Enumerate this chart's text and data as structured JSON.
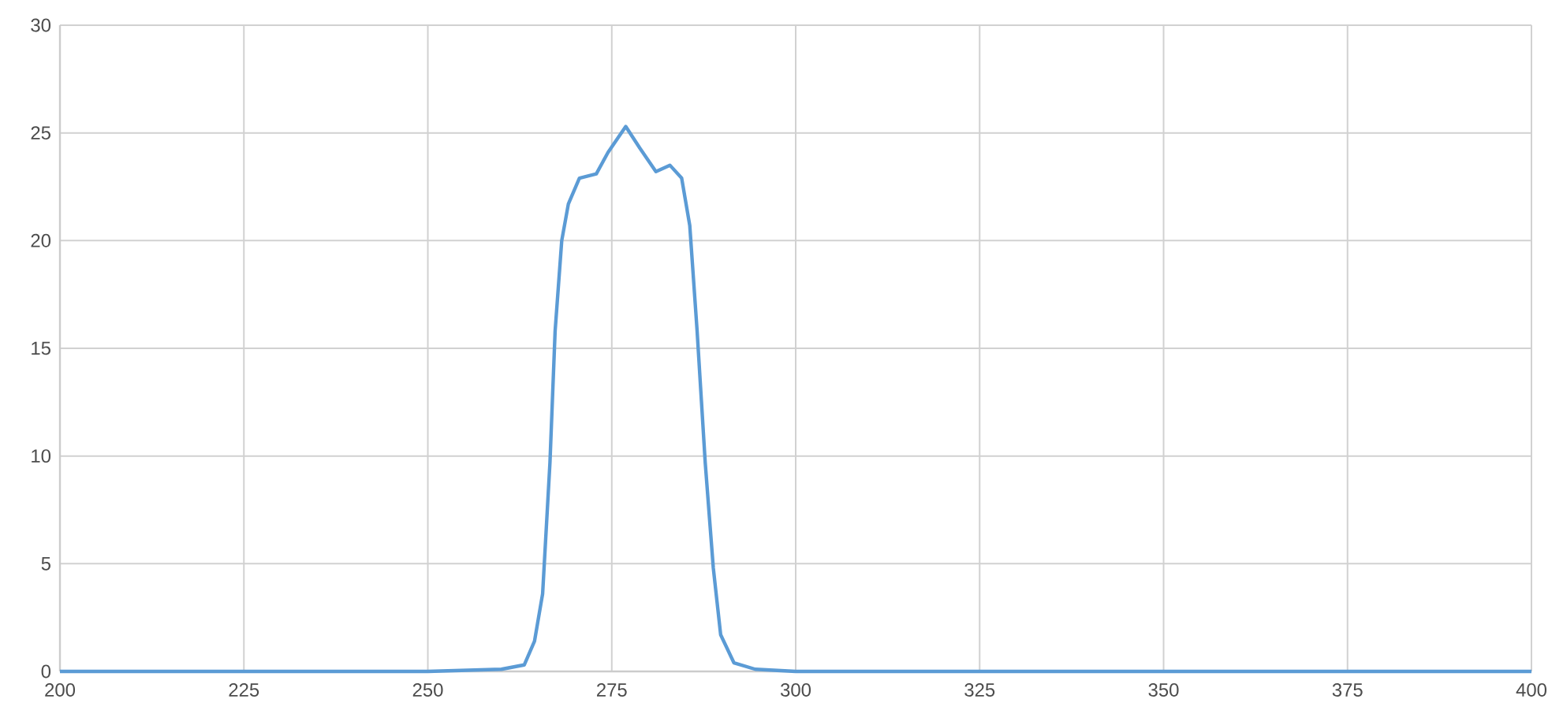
{
  "chart_data": {
    "type": "line",
    "x": [
      200,
      250,
      260,
      263.1,
      264.5,
      265.6,
      266.6,
      267.3,
      268.2,
      269.1,
      270.6,
      272.9,
      274.5,
      276.9,
      278.8,
      281,
      282.9,
      284.5,
      285.6,
      286.6,
      287.7,
      288.8,
      289.8,
      291.6,
      294.5,
      300,
      350,
      400
    ],
    "series": [
      {
        "color": "#5b9bd5",
        "values": [
          0,
          0,
          0.1,
          0.3,
          1.4,
          3.6,
          9.7,
          15.8,
          20,
          21.7,
          22.9,
          23.1,
          24.1,
          25.3,
          24.3,
          23.2,
          23.5,
          22.9,
          20.7,
          15.8,
          9.7,
          4.8,
          1.7,
          0.4,
          0.1,
          0,
          0,
          0
        ]
      }
    ],
    "xlim": [
      200,
      400
    ],
    "xticks": [
      200,
      225,
      250,
      275,
      300,
      325,
      350,
      375,
      400
    ],
    "ylim": [
      0,
      30
    ],
    "yticks": [
      0,
      5,
      10,
      15,
      20,
      25,
      30
    ],
    "grid": true,
    "marker": "none",
    "line_style": "solid"
  }
}
